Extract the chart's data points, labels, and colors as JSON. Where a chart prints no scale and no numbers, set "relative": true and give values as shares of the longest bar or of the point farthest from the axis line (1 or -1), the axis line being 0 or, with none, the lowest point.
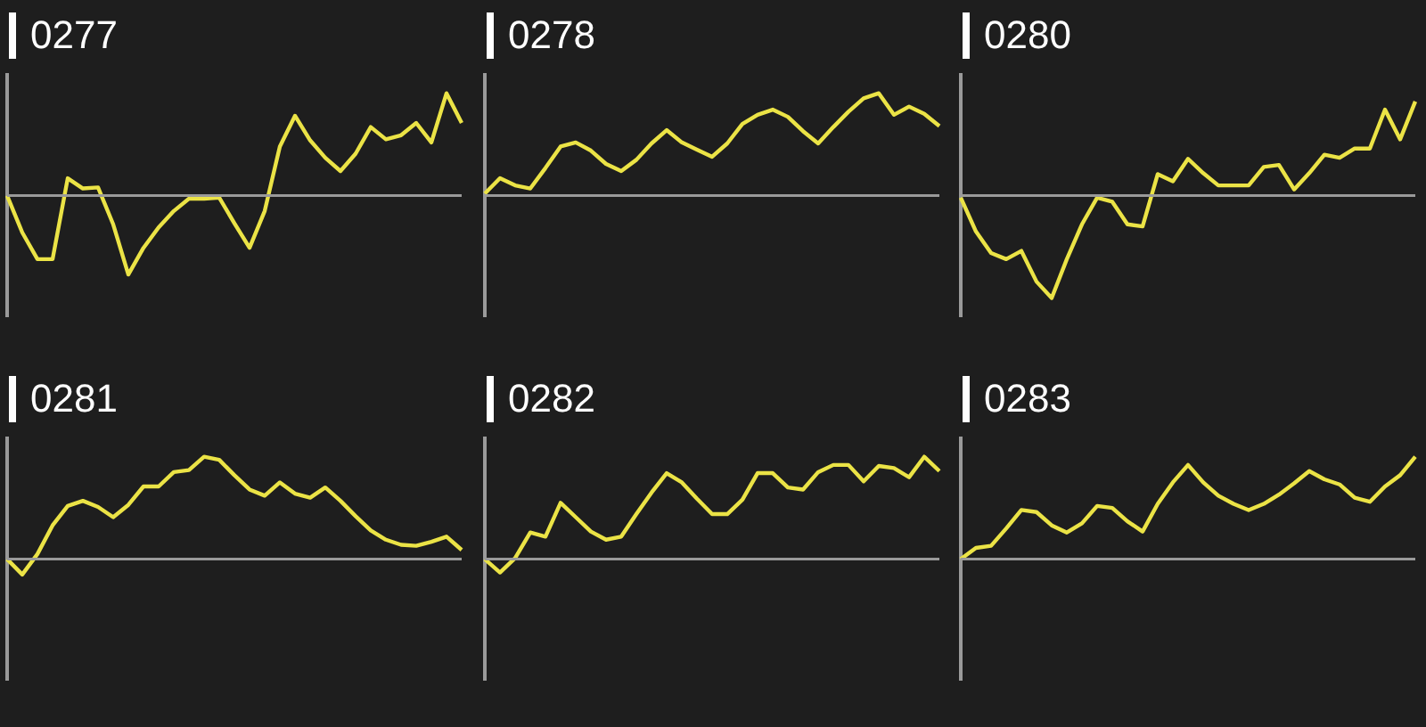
{
  "chart_data": [
    {
      "type": "line",
      "title": "0277",
      "relative": true,
      "marker": "none",
      "categories": [
        null,
        null,
        null,
        null,
        null,
        null,
        null,
        null,
        null,
        null,
        null,
        null,
        null,
        null,
        null,
        null,
        null,
        null,
        null,
        null,
        null,
        null,
        null,
        null,
        null,
        null,
        null,
        null,
        null,
        null,
        null
      ],
      "series": [
        {
          "color": "#ebe346",
          "values": [
            0,
            -0.36,
            -0.62,
            -0.62,
            0.17,
            0.07,
            0.08,
            -0.28,
            -0.77,
            -0.51,
            -0.31,
            -0.15,
            -0.03,
            -0.03,
            -0.02,
            -0.27,
            -0.51,
            -0.15,
            0.48,
            0.78,
            0.54,
            0.37,
            0.24,
            0.41,
            0.67,
            0.55,
            0.59,
            0.71,
            0.52,
            1,
            0.71
          ]
        }
      ]
    },
    {
      "type": "line",
      "title": "0278",
      "relative": true,
      "marker": "none",
      "categories": [
        null,
        null,
        null,
        null,
        null,
        null,
        null,
        null,
        null,
        null,
        null,
        null,
        null,
        null,
        null,
        null,
        null,
        null,
        null,
        null,
        null,
        null,
        null,
        null,
        null,
        null,
        null,
        null,
        null,
        null,
        null
      ],
      "series": [
        {
          "color": "#ebe346",
          "values": [
            0.02,
            0.17,
            0.1,
            0.07,
            0.27,
            0.48,
            0.52,
            0.44,
            0.31,
            0.24,
            0.35,
            0.51,
            0.64,
            0.52,
            0.45,
            0.38,
            0.51,
            0.7,
            0.79,
            0.84,
            0.77,
            0.63,
            0.51,
            0.67,
            0.82,
            0.95,
            1,
            0.79,
            0.87,
            0.8,
            0.68
          ]
        }
      ]
    },
    {
      "type": "line",
      "title": "0280",
      "relative": true,
      "marker": "none",
      "categories": [
        null,
        null,
        null,
        null,
        null,
        null,
        null,
        null,
        null,
        null,
        null,
        null,
        null,
        null,
        null,
        null,
        null,
        null,
        null,
        null,
        null,
        null,
        null,
        null,
        null,
        null,
        null,
        null,
        null,
        null,
        null
      ],
      "series": [
        {
          "color": "#ebe346",
          "values": [
            -0.02,
            -0.35,
            -0.56,
            -0.62,
            -0.54,
            -0.84,
            -1,
            -0.62,
            -0.28,
            -0.02,
            -0.06,
            -0.28,
            -0.3,
            0.21,
            0.14,
            0.36,
            0.22,
            0.1,
            0.1,
            0.1,
            0.28,
            0.3,
            0.06,
            0.22,
            0.4,
            0.37,
            0.46,
            0.46,
            0.84,
            0.55,
            0.92
          ]
        }
      ]
    },
    {
      "type": "line",
      "title": "0281",
      "relative": true,
      "marker": "none",
      "categories": [
        null,
        null,
        null,
        null,
        null,
        null,
        null,
        null,
        null,
        null,
        null,
        null,
        null,
        null,
        null,
        null,
        null,
        null,
        null,
        null,
        null,
        null,
        null,
        null,
        null,
        null,
        null,
        null,
        null,
        null,
        null
      ],
      "series": [
        {
          "color": "#ebe346",
          "values": [
            0,
            -0.15,
            0.05,
            0.33,
            0.52,
            0.57,
            0.51,
            0.41,
            0.53,
            0.71,
            0.71,
            0.85,
            0.87,
            1,
            0.97,
            0.82,
            0.68,
            0.62,
            0.75,
            0.64,
            0.6,
            0.7,
            0.57,
            0.42,
            0.28,
            0.19,
            0.14,
            0.13,
            0.17,
            0.22,
            0.09
          ]
        }
      ]
    },
    {
      "type": "line",
      "title": "0282",
      "relative": true,
      "marker": "none",
      "categories": [
        null,
        null,
        null,
        null,
        null,
        null,
        null,
        null,
        null,
        null,
        null,
        null,
        null,
        null,
        null,
        null,
        null,
        null,
        null,
        null,
        null,
        null,
        null,
        null,
        null,
        null,
        null,
        null,
        null,
        null,
        null
      ],
      "series": [
        {
          "color": "#ebe346",
          "values": [
            0,
            -0.13,
            0.01,
            0.26,
            0.22,
            0.55,
            0.41,
            0.27,
            0.19,
            0.22,
            0.44,
            0.65,
            0.84,
            0.75,
            0.59,
            0.44,
            0.44,
            0.58,
            0.84,
            0.84,
            0.7,
            0.68,
            0.85,
            0.92,
            0.92,
            0.76,
            0.91,
            0.89,
            0.8,
            1,
            0.86
          ]
        }
      ]
    },
    {
      "type": "line",
      "title": "0283",
      "relative": true,
      "marker": "none",
      "categories": [
        null,
        null,
        null,
        null,
        null,
        null,
        null,
        null,
        null,
        null,
        null,
        null,
        null,
        null,
        null,
        null,
        null,
        null,
        null,
        null,
        null,
        null,
        null,
        null,
        null,
        null,
        null,
        null,
        null,
        null,
        null
      ],
      "series": [
        {
          "color": "#ebe346",
          "values": [
            0,
            0.11,
            0.13,
            0.3,
            0.48,
            0.46,
            0.33,
            0.26,
            0.35,
            0.52,
            0.5,
            0.37,
            0.27,
            0.54,
            0.75,
            0.92,
            0.75,
            0.62,
            0.54,
            0.48,
            0.54,
            0.63,
            0.74,
            0.86,
            0.78,
            0.73,
            0.6,
            0.56,
            0.71,
            0.82,
            1
          ]
        }
      ]
    }
  ]
}
